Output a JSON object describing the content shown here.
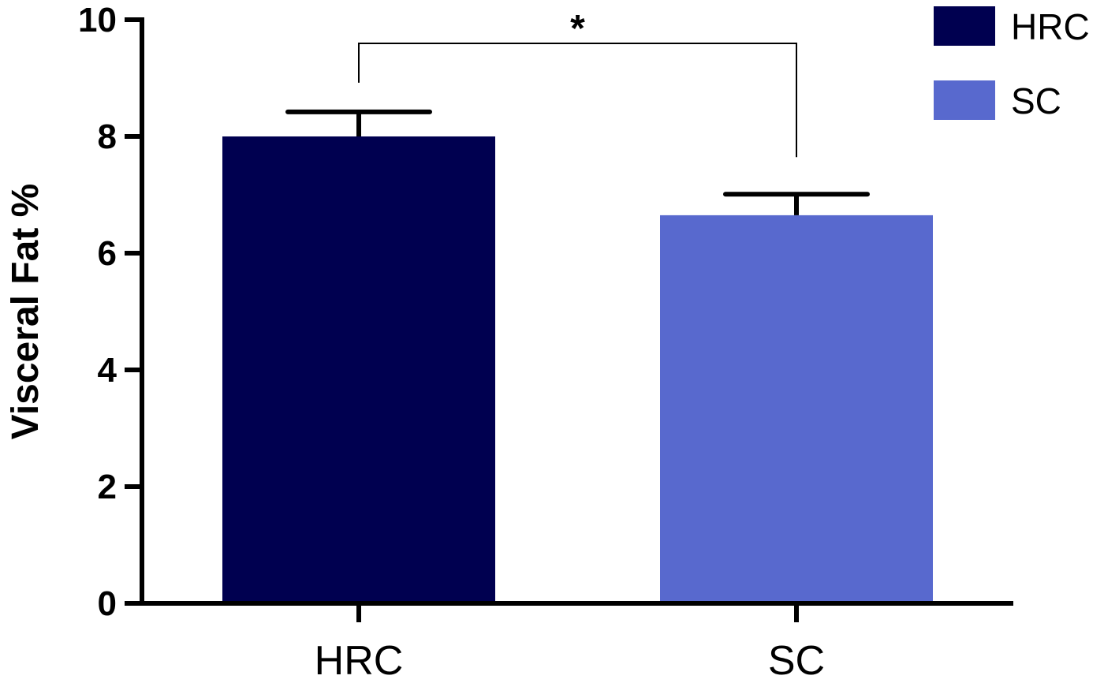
{
  "chart_data": {
    "type": "bar",
    "categories": [
      "HRC",
      "SC"
    ],
    "values": [
      8.0,
      6.65
    ],
    "errors": [
      0.42,
      0.36
    ],
    "colors": [
      "#000050",
      "#5869CE"
    ],
    "ylabel": "Visceral Fat %",
    "xlabel": "",
    "ylim": [
      0,
      10
    ],
    "yticks": [
      0,
      2,
      4,
      6,
      8,
      10
    ],
    "grid": false,
    "legend": {
      "placement": "top-right",
      "entries": [
        {
          "label": "HRC",
          "color": "#000050"
        },
        {
          "label": "SC",
          "color": "#5869CE"
        }
      ]
    },
    "annotations": [
      {
        "text": "*",
        "between": [
          "HRC",
          "SC"
        ]
      }
    ]
  }
}
